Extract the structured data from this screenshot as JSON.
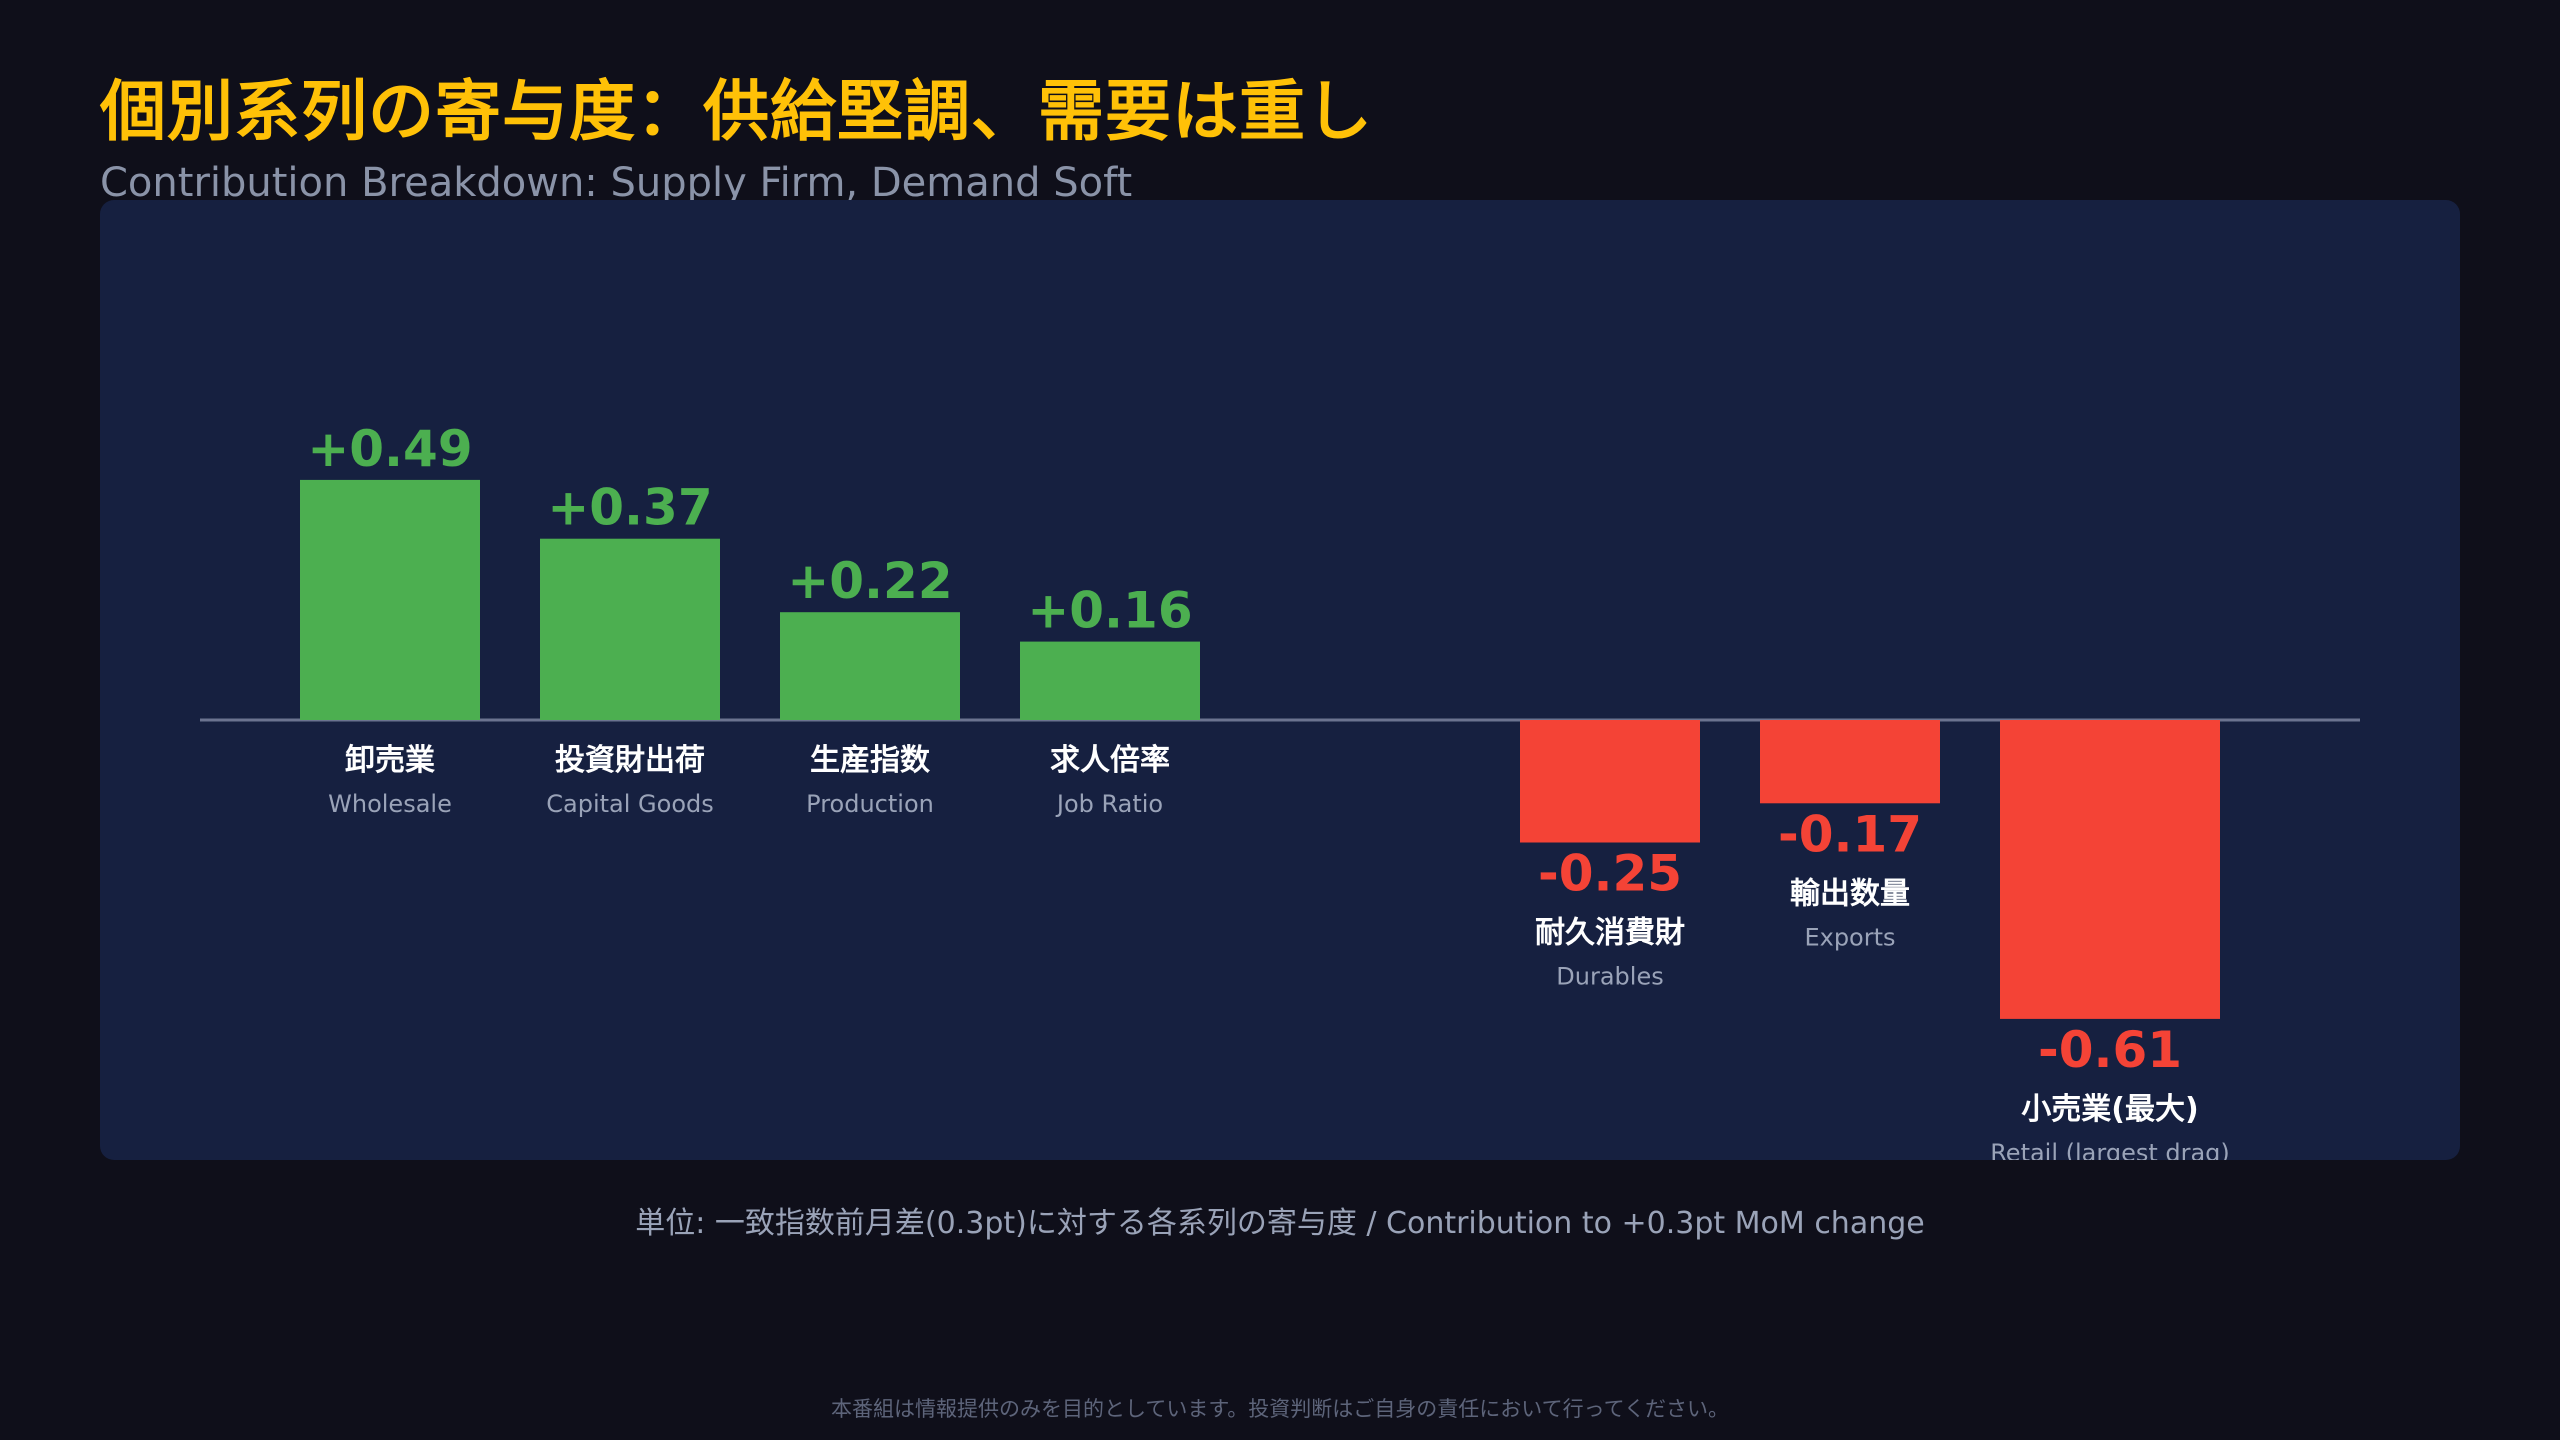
{
  "header": {
    "title": "個別系列の寄与度：供給堅調、需要は重し",
    "subtitle": "Contribution Breakdown: Supply Firm, Demand Soft"
  },
  "footer": {
    "unit_note": "単位: 一致指数前月差(0.3pt)に対する各系列の寄与度 / Contribution to +0.3pt MoM change",
    "disclaimer": "本番組は情報提供のみを目的としています。投資判断はご自身の責任において行ってください。"
  },
  "colors": {
    "positive": "#4caf50",
    "negative": "#f44336",
    "axis": "#6b7390",
    "label_primary": "#ffffff",
    "label_secondary": "#9aa3b8"
  },
  "chart_data": {
    "type": "bar",
    "title": "個別系列の寄与度：供給堅調、需要は重し",
    "subtitle": "Contribution Breakdown: Supply Firm, Demand Soft",
    "xlabel": "",
    "ylabel": "",
    "grid": false,
    "categories": [
      {
        "ja": "卸売業",
        "en": "Wholesale"
      },
      {
        "ja": "投資財出荷",
        "en": "Capital Goods"
      },
      {
        "ja": "生産指数",
        "en": "Production"
      },
      {
        "ja": "求人倍率",
        "en": "Job Ratio"
      },
      {
        "ja": "耐久消費財",
        "en": "Durables"
      },
      {
        "ja": "輸出数量",
        "en": "Exports"
      },
      {
        "ja": "小売業(最大)",
        "en": "Retail (largest drag)"
      }
    ],
    "values": [
      0.49,
      0.37,
      0.22,
      0.16,
      -0.25,
      -0.17,
      -0.61
    ],
    "value_labels": [
      "+0.49",
      "+0.37",
      "+0.22",
      "+0.16",
      "-0.25",
      "-0.17",
      "-0.61"
    ]
  }
}
